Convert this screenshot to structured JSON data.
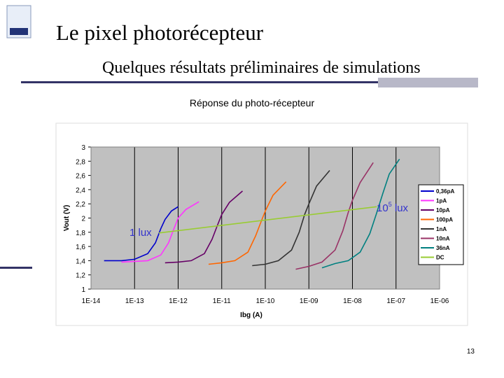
{
  "slide": {
    "title": "Le pixel photorécepteur",
    "subtitle": "Quelques résultats préliminaires de simulations",
    "page_number": "13"
  },
  "chart_data": {
    "type": "line",
    "title": "Réponse du photo-récepteur",
    "x_label": "Ibg (A)",
    "y_label": "Vout (V)",
    "xscale": "log",
    "xgrid": true,
    "plot_background": "#c0c0c0",
    "legend": "right",
    "xlim": [
      1e-14,
      1e-06
    ],
    "xticks": [
      {
        "value": 1e-14,
        "label": "1E-14"
      },
      {
        "value": 1e-13,
        "label": "1E-13"
      },
      {
        "value": 1e-12,
        "label": "1E-12"
      },
      {
        "value": 1e-11,
        "label": "1E-11"
      },
      {
        "value": 1e-10,
        "label": "1E-10"
      },
      {
        "value": 1e-09,
        "label": "1E-09"
      },
      {
        "value": 1e-08,
        "label": "1E-08"
      },
      {
        "value": 1e-07,
        "label": "1E-07"
      },
      {
        "value": 1e-06,
        "label": "1E-06"
      }
    ],
    "ylim": [
      1,
      3
    ],
    "yticks": [
      1,
      {
        "value": 1.2,
        "label": "1,2"
      },
      {
        "value": 1.4,
        "label": "1,4"
      },
      {
        "value": 1.6,
        "label": "1,6"
      },
      {
        "value": 1.8,
        "label": "1,8"
      },
      2,
      {
        "value": 2.2,
        "label": "2,2"
      },
      {
        "value": 2.4,
        "label": "2,4"
      },
      {
        "value": 2.6,
        "label": "2,6"
      },
      {
        "value": 2.8,
        "label": "2,8"
      },
      3
    ],
    "series": [
      {
        "name": "0,36pA",
        "color": "#0000cc",
        "x": [
          2e-14,
          5e-14,
          1e-13,
          2e-13,
          3e-13,
          4e-13,
          5e-13,
          7e-13,
          1e-12
        ],
        "values": [
          1.4,
          1.4,
          1.42,
          1.5,
          1.65,
          1.85,
          1.98,
          2.1,
          2.16
        ]
      },
      {
        "name": "1pA",
        "color": "#ff33ff",
        "x": [
          5e-14,
          1e-13,
          2e-13,
          4e-13,
          6e-13,
          8e-13,
          1e-12,
          1.5e-12,
          3e-12
        ],
        "values": [
          1.38,
          1.39,
          1.4,
          1.48,
          1.65,
          1.85,
          2.0,
          2.12,
          2.23
        ]
      },
      {
        "name": "10pA",
        "color": "#660066",
        "x": [
          5e-13,
          1e-12,
          2e-12,
          4e-12,
          6e-12,
          8e-12,
          1e-11,
          1.5e-11,
          3e-11
        ],
        "values": [
          1.37,
          1.38,
          1.4,
          1.5,
          1.7,
          1.9,
          2.05,
          2.22,
          2.38
        ]
      },
      {
        "name": "100pA",
        "color": "#ff6600",
        "x": [
          5e-12,
          1e-11,
          2e-11,
          4e-11,
          6e-11,
          8e-11,
          1e-10,
          1.5e-10,
          3e-10
        ],
        "values": [
          1.35,
          1.37,
          1.4,
          1.52,
          1.75,
          1.95,
          2.1,
          2.32,
          2.51
        ]
      },
      {
        "name": "1nA",
        "color": "#333333",
        "x": [
          5e-11,
          1e-10,
          2e-10,
          4e-10,
          6e-10,
          8e-10,
          1e-09,
          1.5e-09,
          3e-09
        ],
        "values": [
          1.33,
          1.35,
          1.4,
          1.55,
          1.8,
          2.05,
          2.2,
          2.45,
          2.67
        ]
      },
      {
        "name": "10nA",
        "color": "#993366",
        "x": [
          5e-10,
          1e-09,
          2e-09,
          4e-09,
          6e-09,
          8e-09,
          1e-08,
          1.5e-08,
          3e-08
        ],
        "values": [
          1.28,
          1.32,
          1.38,
          1.55,
          1.82,
          2.08,
          2.25,
          2.5,
          2.78
        ]
      },
      {
        "name": "36nA",
        "color": "#008080",
        "x": [
          2e-09,
          4e-09,
          8e-09,
          1.5e-08,
          2.5e-08,
          3.5e-08,
          5e-08,
          7e-08,
          1.2e-07
        ],
        "values": [
          1.3,
          1.36,
          1.4,
          1.52,
          1.78,
          2.05,
          2.35,
          2.62,
          2.83
        ]
      },
      {
        "name": "DC",
        "color": "#99cc33",
        "x": [
          3.6e-13,
          3.6e-08
        ],
        "values": [
          1.79,
          2.16
        ]
      }
    ],
    "annotations": [
      {
        "text": "1 lux",
        "color": "#3333cc"
      },
      {
        "base": "10",
        "exponent": "5",
        "suffix": " lux",
        "color": "#3333cc"
      }
    ]
  }
}
